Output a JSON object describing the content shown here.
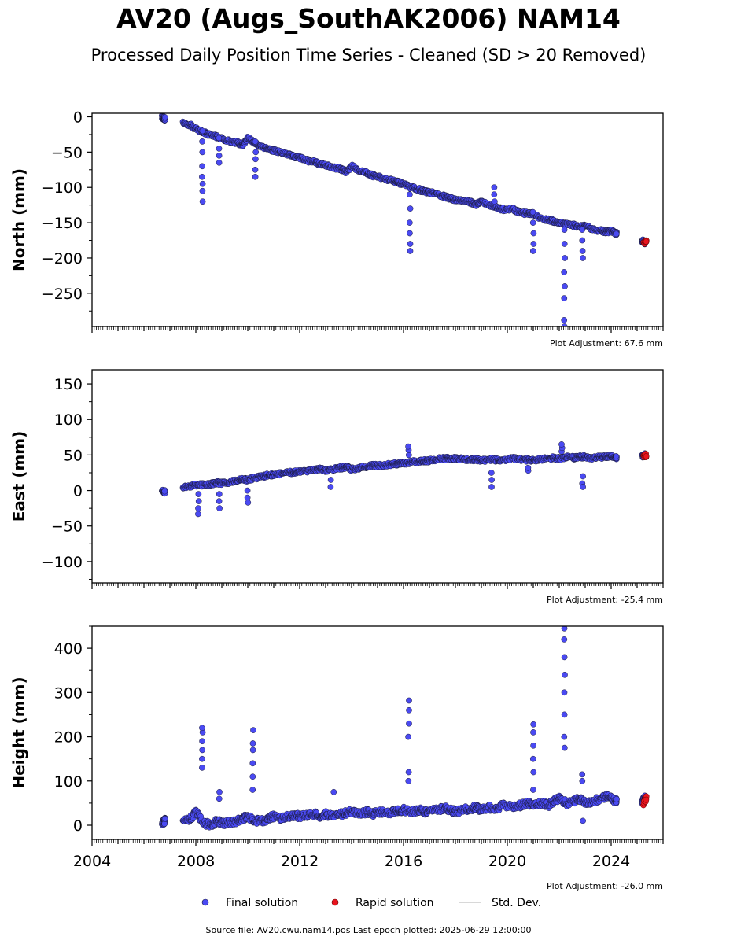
{
  "page": {
    "title": "AV20 (Augs_SouthAK2006) NAM14",
    "subtitle": "Processed Daily Position Time Series - Cleaned (SD > 20 Removed)",
    "source": "Source file: AV20.cwu.nam14.pos  Last epoch plotted: 2025-06-29 12:00:00"
  },
  "legend": {
    "final": "Final solution",
    "rapid": "Rapid solution",
    "stddev": "Std. Dev."
  },
  "colors": {
    "final": "#4a4af2",
    "final_edge": "#1a1a3a",
    "rapid": "#e8141e",
    "stddev": "#cccccc"
  },
  "chart_data": [
    {
      "type": "scatter",
      "ylabel": "North (mm)",
      "adjustment": "Plot Adjustment: 67.6 mm",
      "xlim": [
        2004.0,
        2026.0
      ],
      "ylim": [
        -297,
        5
      ],
      "yticks": [
        0,
        -50,
        -100,
        -150,
        -200,
        -250
      ],
      "ytick_labels": [
        "0",
        "−50",
        "−100",
        "−150",
        "−200",
        "−250"
      ],
      "grid": false,
      "series": [
        {
          "kind": "final",
          "x": [
            2006.7,
            2006.75,
            2006.8,
            2007.5,
            2007.8,
            2008.0,
            2008.3,
            2008.5,
            2008.8,
            2009.0,
            2009.3,
            2009.6,
            2009.8,
            2010.0,
            2010.3,
            2010.5,
            2010.8,
            2011.0,
            2011.3,
            2011.6,
            2011.8,
            2012.0,
            2012.3,
            2012.6,
            2012.8,
            2013.0,
            2013.3,
            2013.6,
            2013.8,
            2014.0,
            2014.3,
            2014.6,
            2014.8,
            2015.0,
            2015.3,
            2015.6,
            2015.8,
            2016.0,
            2016.3,
            2016.6,
            2016.8,
            2017.0,
            2017.3,
            2017.6,
            2017.8,
            2018.0,
            2018.3,
            2018.6,
            2018.8,
            2019.0,
            2019.3,
            2019.6,
            2019.8,
            2020.2,
            2020.5,
            2020.8,
            2021.0,
            2021.3,
            2021.6,
            2021.8,
            2022.0,
            2022.3,
            2022.6,
            2022.8,
            2023.0,
            2023.3,
            2023.6,
            2023.8,
            2024.0,
            2024.2,
            2025.2,
            2025.3
          ],
          "y": [
            0,
            -2,
            -3,
            -8,
            -12,
            -17,
            -22,
            -25,
            -28,
            -31,
            -34,
            -37,
            -40,
            -30,
            -38,
            -42,
            -45,
            -48,
            -51,
            -54,
            -57,
            -58,
            -62,
            -64,
            -67,
            -68,
            -72,
            -74,
            -78,
            -70,
            -76,
            -80,
            -83,
            -85,
            -88,
            -90,
            -93,
            -96,
            -100,
            -103,
            -106,
            -107,
            -110,
            -113,
            -116,
            -117,
            -119,
            -121,
            -124,
            -120,
            -125,
            -128,
            -131,
            -131,
            -136,
            -137,
            -138,
            -144,
            -146,
            -148,
            -150,
            -152,
            -154,
            -156,
            -155,
            -160,
            -161,
            -163,
            -162,
            -165,
            -176,
            -178
          ],
          "spikes": [
            {
              "x": 2008.25,
              "y": [
                -20,
                -35,
                -50,
                -70,
                -85,
                -95,
                -105,
                -120
              ]
            },
            {
              "x": 2008.9,
              "y": [
                -30,
                -45,
                -55,
                -65
              ]
            },
            {
              "x": 2010.3,
              "y": [
                -35,
                -50,
                -60,
                -75,
                -85
              ]
            },
            {
              "x": 2016.25,
              "y": [
                -110,
                -130,
                -150,
                -165,
                -180,
                -190
              ]
            },
            {
              "x": 2019.5,
              "y": [
                -100,
                -110,
                -120
              ]
            },
            {
              "x": 2021.0,
              "y": [
                -135,
                -150,
                -165,
                -180,
                -190
              ]
            },
            {
              "x": 2022.2,
              "y": [
                -160,
                -180,
                -200,
                -220,
                -240,
                -257,
                -288,
                -297
              ]
            },
            {
              "x": 2022.9,
              "y": [
                -160,
                -175,
                -190,
                -200
              ]
            }
          ]
        },
        {
          "kind": "rapid",
          "x": [
            2025.25,
            2025.3,
            2025.35
          ],
          "y": [
            -176,
            -178,
            -177
          ]
        }
      ]
    },
    {
      "type": "scatter",
      "ylabel": "East (mm)",
      "adjustment": "Plot Adjustment: -25.4 mm",
      "xlim": [
        2004.0,
        2026.0
      ],
      "ylim": [
        -130,
        170
      ],
      "yticks": [
        150,
        100,
        50,
        0,
        -50,
        -100
      ],
      "ytick_labels": [
        "150",
        "100",
        "50",
        "0",
        "−50",
        "−100"
      ],
      "grid": false,
      "series": [
        {
          "kind": "final",
          "x": [
            2006.7,
            2006.8,
            2007.5,
            2007.8,
            2008.0,
            2008.3,
            2008.6,
            2008.8,
            2009.0,
            2009.3,
            2009.6,
            2009.8,
            2010.0,
            2010.3,
            2010.6,
            2010.8,
            2011.0,
            2011.3,
            2011.6,
            2011.8,
            2012.0,
            2012.3,
            2012.6,
            2012.8,
            2013.0,
            2013.3,
            2013.6,
            2013.8,
            2014.0,
            2014.3,
            2014.6,
            2014.8,
            2015.0,
            2015.3,
            2015.6,
            2015.8,
            2016.0,
            2016.3,
            2016.6,
            2016.8,
            2017.0,
            2017.3,
            2017.6,
            2017.8,
            2018.0,
            2018.3,
            2018.6,
            2018.8,
            2019.0,
            2019.3,
            2019.6,
            2019.8,
            2020.2,
            2020.5,
            2020.8,
            2021.0,
            2021.3,
            2021.6,
            2021.8,
            2022.0,
            2022.3,
            2022.6,
            2022.8,
            2023.0,
            2023.3,
            2023.6,
            2023.8,
            2024.0,
            2024.2,
            2025.2,
            2025.3
          ],
          "y": [
            0,
            -2,
            4,
            6,
            8,
            8,
            9,
            11,
            10,
            12,
            14,
            16,
            15,
            18,
            20,
            22,
            22,
            24,
            25,
            26,
            27,
            28,
            29,
            30,
            28,
            30,
            32,
            33,
            30,
            32,
            34,
            35,
            35,
            36,
            37,
            38,
            38,
            40,
            41,
            42,
            42,
            44,
            45,
            46,
            45,
            44,
            43,
            44,
            42,
            44,
            43,
            42,
            45,
            44,
            43,
            42,
            44,
            45,
            46,
            45,
            47,
            46,
            48,
            47,
            46,
            47,
            48,
            49,
            46,
            48,
            50
          ],
          "spikes": [
            {
              "x": 2008.1,
              "y": [
                -5,
                -15,
                -25,
                -33
              ]
            },
            {
              "x": 2008.9,
              "y": [
                -5,
                -15,
                -25
              ]
            },
            {
              "x": 2010.0,
              "y": [
                0,
                -10,
                -17
              ]
            },
            {
              "x": 2013.2,
              "y": [
                5,
                15
              ]
            },
            {
              "x": 2016.2,
              "y": [
                50,
                57,
                62
              ]
            },
            {
              "x": 2019.4,
              "y": [
                15,
                5,
                25
              ]
            },
            {
              "x": 2020.8,
              "y": [
                28,
                32
              ]
            },
            {
              "x": 2022.1,
              "y": [
                55,
                60,
                65
              ]
            },
            {
              "x": 2022.9,
              "y": [
                20,
                10,
                5
              ]
            }
          ]
        },
        {
          "kind": "rapid",
          "x": [
            2025.25,
            2025.3,
            2025.35
          ],
          "y": [
            47,
            50,
            49
          ]
        }
      ]
    },
    {
      "type": "scatter",
      "ylabel": "Height (mm)",
      "adjustment": "Plot Adjustment: -26.0 mm",
      "xlim": [
        2004.0,
        2026.0
      ],
      "ylim": [
        -32,
        450
      ],
      "yticks": [
        400,
        300,
        200,
        100,
        0
      ],
      "ytick_labels": [
        "400",
        "300",
        "200",
        "100",
        "0"
      ],
      "xticks": [
        2004,
        2008,
        2012,
        2016,
        2020,
        2024
      ],
      "xtick_labels": [
        "2004",
        "2008",
        "2012",
        "2016",
        "2020",
        "2024"
      ],
      "grid": false,
      "series": [
        {
          "kind": "final",
          "x": [
            2006.7,
            2006.8,
            2007.5,
            2007.8,
            2008.0,
            2008.3,
            2008.6,
            2008.8,
            2009.0,
            2009.3,
            2009.6,
            2009.8,
            2010.0,
            2010.3,
            2010.6,
            2010.8,
            2011.0,
            2011.3,
            2011.6,
            2011.8,
            2012.0,
            2012.3,
            2012.6,
            2012.8,
            2013.0,
            2013.3,
            2013.6,
            2013.8,
            2014.0,
            2014.3,
            2014.6,
            2014.8,
            2015.0,
            2015.3,
            2015.6,
            2015.8,
            2016.0,
            2016.3,
            2016.6,
            2016.8,
            2017.0,
            2017.3,
            2017.6,
            2017.8,
            2018.0,
            2018.3,
            2018.6,
            2018.8,
            2019.0,
            2019.3,
            2019.6,
            2019.8,
            2020.2,
            2020.5,
            2020.8,
            2021.0,
            2021.3,
            2021.6,
            2021.8,
            2022.0,
            2022.3,
            2022.6,
            2022.8,
            2023.0,
            2023.3,
            2023.6,
            2023.8,
            2024.0,
            2024.2,
            2025.2,
            2025.3
          ],
          "y": [
            5,
            10,
            10,
            15,
            30,
            5,
            0,
            10,
            5,
            5,
            10,
            15,
            20,
            10,
            10,
            15,
            20,
            15,
            20,
            22,
            20,
            22,
            25,
            20,
            25,
            20,
            25,
            28,
            30,
            25,
            30,
            25,
            30,
            28,
            30,
            32,
            35,
            30,
            35,
            30,
            32,
            35,
            38,
            35,
            30,
            35,
            38,
            40,
            35,
            40,
            38,
            45,
            40,
            45,
            50,
            45,
            50,
            45,
            55,
            60,
            50,
            55,
            60,
            50,
            55,
            60,
            65,
            60,
            55,
            55,
            60
          ],
          "spikes": [
            {
              "x": 2008.25,
              "y": [
                130,
                150,
                170,
                190,
                210,
                220
              ]
            },
            {
              "x": 2008.9,
              "y": [
                60,
                75
              ]
            },
            {
              "x": 2010.2,
              "y": [
                80,
                110,
                140,
                170,
                185,
                215
              ]
            },
            {
              "x": 2013.3,
              "y": [
                75
              ]
            },
            {
              "x": 2016.2,
              "y": [
                100,
                120,
                200,
                230,
                260,
                282
              ]
            },
            {
              "x": 2021.0,
              "y": [
                80,
                120,
                150,
                180,
                210,
                228
              ]
            },
            {
              "x": 2022.2,
              "y": [
                175,
                200,
                250,
                300,
                340,
                380,
                420,
                445
              ]
            },
            {
              "x": 2022.9,
              "y": [
                100,
                115,
                10
              ]
            }
          ]
        },
        {
          "kind": "rapid",
          "x": [
            2025.25,
            2025.3,
            2025.35
          ],
          "y": [
            50,
            55,
            62
          ]
        }
      ]
    }
  ]
}
